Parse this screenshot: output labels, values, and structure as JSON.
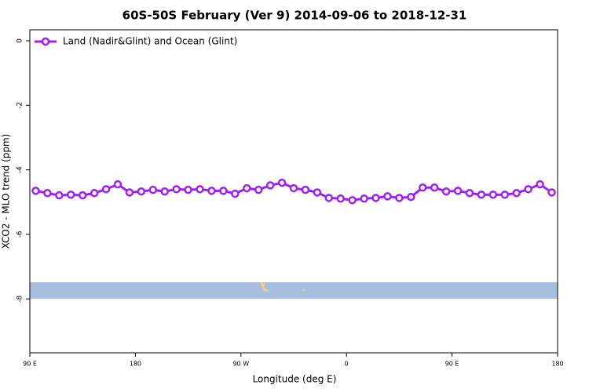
{
  "chart_data": {
    "type": "line",
    "title": "60S-50S February (Ver 9)   2014-09-06 to 2018-12-31",
    "x_label": "Longitude (deg E)",
    "y_label": "XCO2 - MLO trend (ppm)",
    "xlim": [
      90,
      540
    ],
    "xticks": [
      {
        "value": 90,
        "label": "90 E"
      },
      180,
      {
        "value": 270,
        "label": "90 W"
      },
      {
        "value": 360,
        "label": "0"
      },
      {
        "value": 450,
        "label": "90 E"
      },
      {
        "value": 540,
        "label": "180"
      }
    ],
    "ylim": [
      -9.67,
      0.34
    ],
    "yticks": [
      0,
      -2,
      -4,
      -6,
      -8
    ],
    "x": [
      95,
      105,
      115,
      125,
      135,
      145,
      155,
      165,
      175,
      185,
      195,
      205,
      215,
      225,
      235,
      245,
      255,
      265,
      275,
      285,
      295,
      305,
      315,
      325,
      335,
      345,
      355,
      365,
      375,
      385,
      395,
      405,
      415,
      425,
      435,
      445,
      455,
      465,
      475,
      485,
      495,
      505,
      515,
      525,
      535
    ],
    "series": [
      {
        "name": "Land (Nadir&Glint) and Ocean (Glint)",
        "color": "#a020f0",
        "values": [
          -4.65,
          -4.72,
          -4.79,
          -4.77,
          -4.79,
          -4.72,
          -4.6,
          -4.45,
          -4.7,
          -4.67,
          -4.62,
          -4.67,
          -4.6,
          -4.62,
          -4.6,
          -4.65,
          -4.65,
          -4.74,
          -4.57,
          -4.62,
          -4.48,
          -4.4,
          -4.57,
          -4.62,
          -4.7,
          -4.87,
          -4.89,
          -4.94,
          -4.89,
          -4.87,
          -4.82,
          -4.87,
          -4.84,
          -4.55,
          -4.55,
          -4.67,
          -4.65,
          -4.72,
          -4.77,
          -4.77,
          -4.77,
          -4.72,
          -4.6,
          -4.45,
          -4.7
        ]
      }
    ],
    "legend": "top-left"
  }
}
